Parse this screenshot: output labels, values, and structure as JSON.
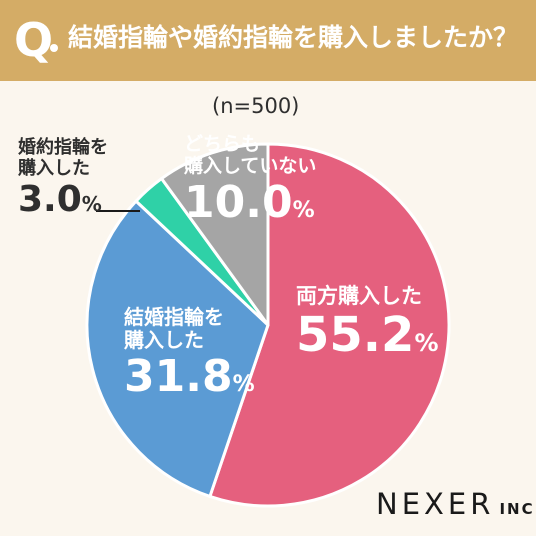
{
  "header": {
    "q_mark": "Q",
    "question": "結婚指輪や婚約指輪を購入しましたか？"
  },
  "sample": "(n=500)",
  "brand": {
    "name": "NEXER",
    "suffix": "INC."
  },
  "colors": {
    "header_bg": "#d4ac66",
    "background": "#fbf6ee"
  },
  "chart_data": {
    "type": "pie",
    "start_angle_deg": 0,
    "direction": "clockwise",
    "slices": [
      {
        "label_lines": [
          "両方購入した"
        ],
        "value": 55.2,
        "value_text": "55.2",
        "unit": "%",
        "color": "#e5607e"
      },
      {
        "label_lines": [
          "結婚指輪を",
          "購入した"
        ],
        "value": 31.8,
        "value_text": "31.8",
        "unit": "%",
        "color": "#5b9bd4"
      },
      {
        "label_lines": [
          "婚約指輪を",
          "購入した"
        ],
        "value": 3.0,
        "value_text": "3.0",
        "unit": "%",
        "color": "#2fd1a7"
      },
      {
        "label_lines": [
          "どちらも",
          "購入していない"
        ],
        "value": 10.0,
        "value_text": "10.0",
        "unit": "%",
        "color": "#a5a5a5"
      }
    ]
  }
}
